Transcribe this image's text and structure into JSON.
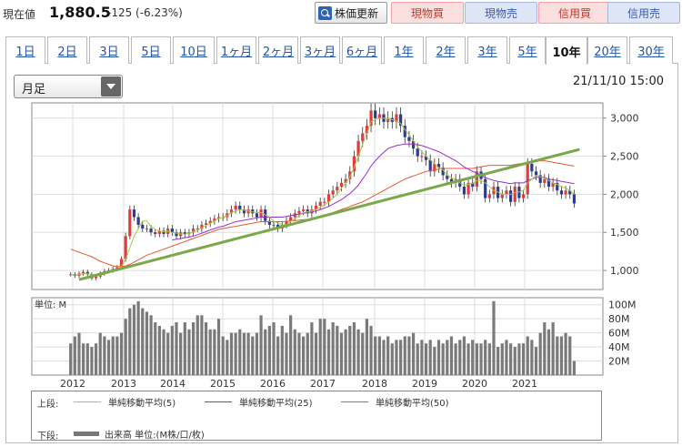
{
  "header": {
    "price_label": "現在値",
    "price_value": "1,880.5",
    "price_change": "-125 (-6.23%)",
    "refresh_label": "株価更新",
    "buttons": [
      "現物買",
      "現物売",
      "信用買",
      "信用売"
    ]
  },
  "tabs": [
    "1日",
    "2日",
    "3日",
    "5日",
    "10日",
    "1ヶ月",
    "2ヶ月",
    "3ヶ月",
    "6ヶ月",
    "1年",
    "2年",
    "3年",
    "5年",
    "10年",
    "20年",
    "30年"
  ],
  "active_tab": "10年",
  "period_select": "月足",
  "datetime": "21/11/10 15:00",
  "colors": {
    "up": "#e23b3b",
    "down": "#2f3b8f",
    "ma5": "#a8c84a",
    "ma25": "#9b30c8",
    "ma50": "#e8583a",
    "trend": "#7aa84a",
    "volume": "#7a7a7a"
  },
  "legend": {
    "upper_label": "上段:",
    "lower_label": "下段:",
    "ma5": "単純移動平均(5)",
    "ma25": "単純移動平均(25)",
    "ma50": "単純移動平均(50)",
    "volume": "出来高 単位:(M株/口/枚)"
  },
  "chart_data": [
    {
      "type": "candlestick",
      "title": "",
      "x_tick_labels": [
        "2012",
        "2013",
        "2014",
        "2015",
        "2016",
        "2017",
        "2018",
        "2019",
        "2020",
        "2021"
      ],
      "y_tick_labels": [
        "3,000",
        "2,500",
        "2,000",
        "1,500",
        "1,000"
      ],
      "ylim": [
        750,
        3200
      ],
      "grid": true,
      "monthly_close_approx": [
        950,
        930,
        960,
        980,
        950,
        900,
        920,
        960,
        990,
        1000,
        1020,
        1040,
        1150,
        1450,
        1800,
        1700,
        1600,
        1550,
        1550,
        1500,
        1480,
        1520,
        1480,
        1550,
        1500,
        1450,
        1500,
        1480,
        1500,
        1550,
        1550,
        1600,
        1620,
        1650,
        1680,
        1700,
        1700,
        1750,
        1800,
        1850,
        1800,
        1750,
        1800,
        1750,
        1700,
        1800,
        1650,
        1600,
        1600,
        1550,
        1600,
        1650,
        1700,
        1750,
        1780,
        1800,
        1750,
        1800,
        1850,
        1900,
        1900,
        2000,
        2050,
        2100,
        2150,
        2200,
        2300,
        2500,
        2700,
        2800,
        2900,
        3100,
        3000,
        3050,
        2950,
        3000,
        2950,
        3050,
        2900,
        2750,
        2700,
        2600,
        2500,
        2500,
        2450,
        2300,
        2400,
        2350,
        2250,
        2200,
        2150,
        2200,
        2100,
        2000,
        2150,
        2100,
        2300,
        2200,
        1950,
        2000,
        2100,
        1950,
        2000,
        2050,
        1900,
        2100,
        1950,
        2000,
        2400,
        2300,
        2250,
        2150,
        2200,
        2100,
        2150,
        2050,
        2000,
        2050,
        2000,
        1880
      ],
      "ma5_approx": [
        950,
        940,
        945,
        955,
        955,
        950,
        940,
        935,
        950,
        975,
        985,
        1000,
        1050,
        1150,
        1300,
        1450,
        1550,
        1650,
        1650,
        1580,
        1540,
        1520,
        1505,
        1515,
        1500,
        1490,
        1480,
        1475,
        1490,
        1510,
        1530,
        1560,
        1590,
        1620,
        1650,
        1680,
        1700,
        1720,
        1760,
        1780,
        1800,
        1790,
        1780,
        1770,
        1760,
        1760,
        1730,
        1700,
        1650,
        1620,
        1600,
        1600,
        1640,
        1680,
        1720,
        1760,
        1770,
        1780,
        1800,
        1830,
        1860,
        1900,
        1950,
        2000,
        2080,
        2150,
        2230,
        2350,
        2500,
        2650,
        2800,
        2950,
        2980,
        3000,
        3000,
        2990,
        2980,
        2960,
        2930,
        2850,
        2780,
        2700,
        2620,
        2560,
        2500,
        2450,
        2400,
        2350,
        2320,
        2250,
        2220,
        2180,
        2150,
        2120,
        2130,
        2140,
        2180,
        2180,
        2150,
        2100,
        2050,
        2030,
        2000,
        2000,
        2000,
        2020,
        2030,
        2050,
        2150,
        2200,
        2250,
        2230,
        2210,
        2180,
        2150,
        2130,
        2100,
        2080,
        2050,
        2000
      ],
      "ma25_approx": [
        null,
        null,
        null,
        null,
        null,
        null,
        null,
        null,
        null,
        null,
        null,
        null,
        null,
        null,
        null,
        null,
        null,
        null,
        null,
        null,
        null,
        null,
        null,
        null,
        1400,
        1410,
        1420,
        1430,
        1440,
        1450,
        1470,
        1490,
        1510,
        1530,
        1550,
        1570,
        1580,
        1600,
        1620,
        1640,
        1650,
        1660,
        1670,
        1680,
        1690,
        1700,
        1700,
        1700,
        1700,
        1700,
        1700,
        1710,
        1720,
        1730,
        1740,
        1750,
        1760,
        1770,
        1780,
        1800,
        1820,
        1840,
        1870,
        1900,
        1930,
        1970,
        2010,
        2060,
        2120,
        2200,
        2280,
        2370,
        2440,
        2500,
        2550,
        2600,
        2620,
        2640,
        2650,
        2660,
        2660,
        2660,
        2650,
        2640,
        2620,
        2600,
        2580,
        2560,
        2530,
        2500,
        2470,
        2440,
        2400,
        2360,
        2330,
        2300,
        2280,
        2250,
        2220,
        2200,
        2180,
        2170,
        2160,
        2150,
        2140,
        2150,
        2150,
        2150,
        2180,
        2200,
        2220,
        2230,
        2220,
        2200,
        2190,
        2180,
        2170,
        2160,
        2150,
        2140
      ],
      "ma50_approx": [
        1280,
        1260,
        1240,
        1220,
        1200,
        1180,
        1150,
        1120,
        1100,
        1080,
        1060,
        1050,
        1050,
        1060,
        1080,
        1110,
        1140,
        1170,
        1200,
        1220,
        1240,
        1260,
        1280,
        1300,
        1320,
        1340,
        1360,
        1380,
        1400,
        1420,
        1440,
        1460,
        1480,
        1500,
        1520,
        1540,
        1550,
        1560,
        1570,
        1580,
        1590,
        1600,
        1610,
        1620,
        1630,
        1640,
        1640,
        1640,
        1640,
        1640,
        1640,
        1645,
        1650,
        1655,
        1660,
        1665,
        1670,
        1680,
        1690,
        1700,
        1720,
        1740,
        1760,
        1780,
        1800,
        1820,
        1840,
        1860,
        1880,
        1900,
        1930,
        1960,
        1990,
        2020,
        2050,
        2080,
        2110,
        2140,
        2170,
        2200,
        2220,
        2240,
        2260,
        2280,
        2300,
        2310,
        2320,
        2330,
        2340,
        2340,
        2340,
        2340,
        2340,
        2340,
        2340,
        2340,
        2350,
        2360,
        2370,
        2380,
        2380,
        2380,
        2380,
        2380,
        2380,
        2390,
        2400,
        2400,
        2420,
        2430,
        2440,
        2440,
        2440,
        2430,
        2420,
        2410,
        2400,
        2390,
        2380,
        2370
      ],
      "trendline": {
        "from": [
          "2012",
          880
        ],
        "to": [
          "2021-11",
          2590
        ]
      }
    },
    {
      "type": "bar",
      "title": "",
      "ylabel": "単位: M",
      "y_tick_labels": [
        "100M",
        "80M",
        "60M",
        "40M",
        "20M"
      ],
      "ylim": [
        0,
        110
      ],
      "grid": true,
      "values_approx": [
        45,
        55,
        60,
        45,
        45,
        40,
        45,
        60,
        55,
        50,
        55,
        55,
        60,
        80,
        95,
        100,
        105,
        95,
        90,
        85,
        75,
        70,
        65,
        60,
        70,
        75,
        60,
        75,
        65,
        75,
        85,
        85,
        75,
        65,
        65,
        80,
        55,
        50,
        60,
        60,
        65,
        60,
        60,
        55,
        60,
        85,
        65,
        70,
        75,
        55,
        70,
        60,
        85,
        65,
        60,
        55,
        60,
        75,
        60,
        80,
        80,
        65,
        75,
        70,
        60,
        65,
        70,
        75,
        65,
        60,
        80,
        70,
        55,
        55,
        50,
        55,
        45,
        50,
        50,
        55,
        55,
        60,
        45,
        50,
        45,
        50,
        40,
        50,
        45,
        50,
        55,
        45,
        50,
        55,
        45,
        50,
        45,
        45,
        50,
        45,
        105,
        40,
        45,
        50,
        45,
        40,
        45,
        45,
        55,
        50,
        40,
        60,
        75,
        65,
        75,
        55,
        55,
        60,
        55,
        20
      ]
    }
  ]
}
